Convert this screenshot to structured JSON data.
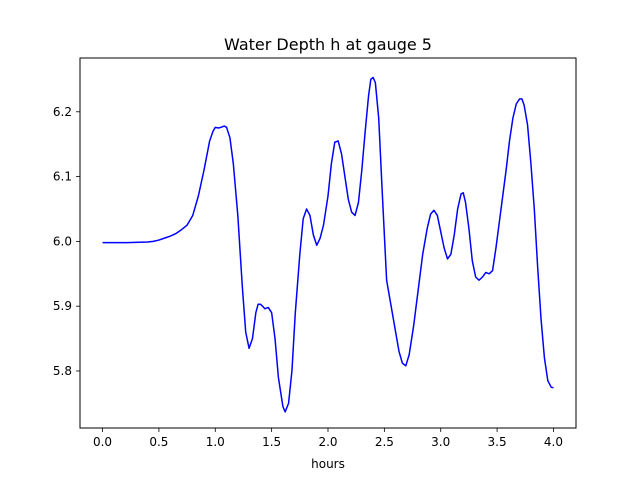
{
  "chart_data": {
    "type": "line",
    "title": "Water Depth h at gauge 5",
    "xlabel": "hours",
    "ylabel": "",
    "xlim": [
      -0.2,
      4.2
    ],
    "ylim": [
      5.712,
      6.283
    ],
    "xticks": [
      0.0,
      0.5,
      1.0,
      1.5,
      2.0,
      2.5,
      3.0,
      3.5,
      4.0
    ],
    "xtick_labels": [
      "0.0",
      "0.5",
      "1.0",
      "1.5",
      "2.0",
      "2.5",
      "3.0",
      "3.5",
      "4.0"
    ],
    "yticks": [
      5.8,
      5.9,
      6.0,
      6.1,
      6.2
    ],
    "ytick_labels": [
      "5.8",
      "5.9",
      "6.0",
      "6.1",
      "6.2"
    ],
    "grid": false,
    "legend": "none",
    "series": [
      {
        "color": "#0000ff",
        "x": [
          0.0,
          0.2,
          0.4,
          0.45,
          0.5,
          0.55,
          0.6,
          0.65,
          0.7,
          0.75,
          0.8,
          0.85,
          0.9,
          0.95,
          0.98,
          1.0,
          1.03,
          1.05,
          1.08,
          1.1,
          1.13,
          1.16,
          1.2,
          1.24,
          1.27,
          1.3,
          1.33,
          1.36,
          1.38,
          1.4,
          1.42,
          1.44,
          1.47,
          1.5,
          1.53,
          1.56,
          1.6,
          1.62,
          1.65,
          1.68,
          1.71,
          1.75,
          1.78,
          1.81,
          1.84,
          1.87,
          1.9,
          1.93,
          1.96,
          2.0,
          2.03,
          2.06,
          2.09,
          2.12,
          2.15,
          2.18,
          2.21,
          2.24,
          2.27,
          2.3,
          2.33,
          2.36,
          2.38,
          2.4,
          2.42,
          2.45,
          2.48,
          2.52,
          2.56,
          2.6,
          2.63,
          2.66,
          2.69,
          2.72,
          2.76,
          2.8,
          2.84,
          2.88,
          2.91,
          2.94,
          2.97,
          3.0,
          3.03,
          3.06,
          3.09,
          3.12,
          3.15,
          3.18,
          3.2,
          3.22,
          3.25,
          3.28,
          3.31,
          3.34,
          3.37,
          3.4,
          3.43,
          3.46,
          3.49,
          3.52,
          3.55,
          3.58,
          3.61,
          3.64,
          3.67,
          3.7,
          3.72,
          3.74,
          3.77,
          3.8,
          3.83,
          3.86,
          3.89,
          3.92,
          3.95,
          3.98,
          4.0
        ],
        "y": [
          5.998,
          5.998,
          5.999,
          6.0,
          6.002,
          6.005,
          6.008,
          6.012,
          6.018,
          6.025,
          6.04,
          6.07,
          6.11,
          6.155,
          6.17,
          6.176,
          6.175,
          6.176,
          6.178,
          6.176,
          6.16,
          6.12,
          6.04,
          5.93,
          5.86,
          5.835,
          5.85,
          5.89,
          5.903,
          5.903,
          5.9,
          5.896,
          5.898,
          5.89,
          5.85,
          5.79,
          5.745,
          5.737,
          5.75,
          5.8,
          5.89,
          5.98,
          6.035,
          6.05,
          6.04,
          6.01,
          5.994,
          6.005,
          6.025,
          6.07,
          6.12,
          6.153,
          6.155,
          6.135,
          6.1,
          6.065,
          6.045,
          6.04,
          6.06,
          6.11,
          6.17,
          6.225,
          6.25,
          6.253,
          6.245,
          6.19,
          6.08,
          5.94,
          5.9,
          5.86,
          5.83,
          5.812,
          5.808,
          5.825,
          5.87,
          5.925,
          5.98,
          6.02,
          6.042,
          6.048,
          6.04,
          6.015,
          5.99,
          5.973,
          5.98,
          6.01,
          6.05,
          6.073,
          6.075,
          6.06,
          6.02,
          5.97,
          5.945,
          5.94,
          5.945,
          5.952,
          5.95,
          5.955,
          5.99,
          6.03,
          6.07,
          6.11,
          6.155,
          6.19,
          6.212,
          6.22,
          6.22,
          6.21,
          6.18,
          6.12,
          6.05,
          5.96,
          5.88,
          5.82,
          5.785,
          5.775,
          5.774
        ]
      }
    ]
  }
}
